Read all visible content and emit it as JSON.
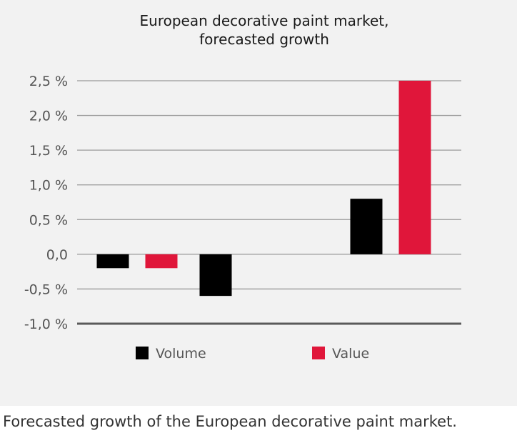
{
  "chart_data": {
    "type": "bar",
    "title_lines": [
      "European decorative paint market,",
      "forecasted growth"
    ],
    "categories": [
      "",
      "",
      ""
    ],
    "series": [
      {
        "name": "Volume",
        "color": "#000000",
        "values": [
          -0.2,
          -0.6,
          0.8
        ]
      },
      {
        "name": "Value",
        "color": "#e0163a",
        "values": [
          -0.2,
          null,
          2.5
        ]
      }
    ],
    "ylim": [
      -1.0,
      2.5
    ],
    "yticks": [
      2.5,
      2.0,
      1.5,
      1.0,
      0.5,
      0.0,
      -0.5,
      -1.0
    ],
    "ytick_labels": [
      "2,5 %",
      "2,0 %",
      "1,5 %",
      "1,0 %",
      "0,5 %",
      "0,0",
      "-0,5 %",
      "-1,0 %"
    ],
    "grid": true,
    "legend_position": "bottom"
  },
  "caption": "Forecasted growth of the European decorative paint market."
}
